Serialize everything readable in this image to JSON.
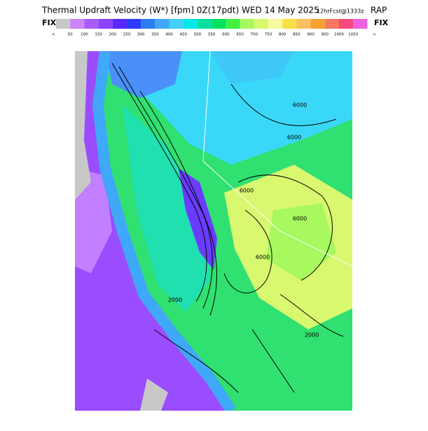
{
  "header": {
    "title": "Thermal Updraft Velocity (W*) [fpm] 0Z(17pdt) WED 14 May 2025",
    "forecast": "12hrFcst@1333z",
    "model": "RAP"
  },
  "colorbar": {
    "left_label": "FIX",
    "right_label": "FIX",
    "colors": [
      "#c8c8c8",
      "#c884f8",
      "#a85cff",
      "#8a44ff",
      "#5a28ff",
      "#2c3cff",
      "#2c7cf4",
      "#40a8f8",
      "#40d0f8",
      "#00e8e8",
      "#00e0a0",
      "#00e060",
      "#40f040",
      "#a8f860",
      "#d8f870",
      "#f8f8a0",
      "#f8e048",
      "#f8c060",
      "#f8a030",
      "#f87860",
      "#f84880",
      "#f060e0"
    ],
    "labels": [
      "<",
      "50",
      "100",
      "150",
      "200",
      "250",
      "300",
      "350",
      "400",
      "450",
      "500",
      "550",
      "600",
      "650",
      "700",
      "750",
      "800",
      "850",
      "900",
      "950",
      "1000",
      "1050",
      ">"
    ]
  },
  "map": {
    "contour_labels": [
      "6000",
      "6000",
      "6000",
      "6000",
      "6000",
      "2000",
      "2000"
    ]
  }
}
